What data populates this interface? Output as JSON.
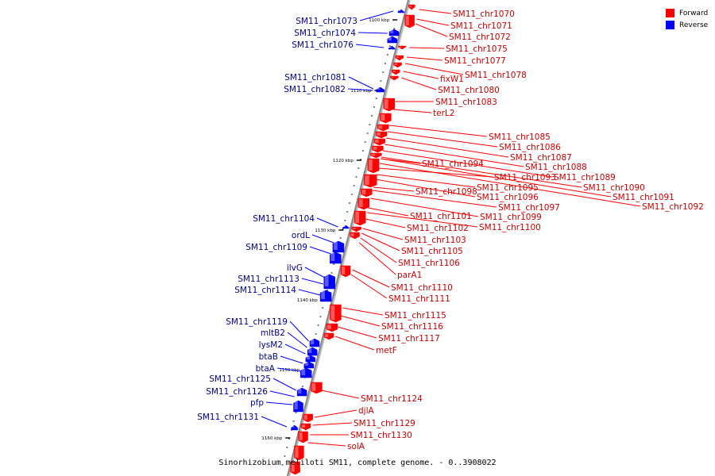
{
  "legend": {
    "forward_label": "Forward",
    "reverse_label": "Reverse",
    "forward_color": "#ff0000",
    "reverse_color": "#0000ff"
  },
  "caption": "Sinorhizobium meliloti SM11, complete genome. - 0..3908022",
  "colors": {
    "forward_fill": "#ff0000",
    "forward_label": "#cc0000",
    "reverse_fill": "#0000ff",
    "reverse_label": "#000099",
    "axis": "#999999",
    "ticks": "#000000"
  },
  "scale_ticks": [
    "1100 kbp",
    "1110 kbp",
    "1120 kbp",
    "1130 kbp",
    "1140 kbp",
    "1150 kbp",
    "1160 kbp"
  ],
  "forward_genes": [
    "SM11_chr1070",
    "SM11_chr1071",
    "SM11_chr1072",
    "SM11_chr1075",
    "SM11_chr1077",
    "SM11_chr1078",
    "fixW1",
    "SM11_chr1080",
    "SM11_chr1083",
    "terL2",
    "SM11_chr1085",
    "SM11_chr1086",
    "SM11_chr1087",
    "SM11_chr1088",
    "SM11_chr1089",
    "SM11_chr1090",
    "SM11_chr1091",
    "SM11_chr1092",
    "SM11_chr1094",
    "SM11_chr1093",
    "SM11_chr1095",
    "SM11_chr1096",
    "SM11_chr1098",
    "SM11_chr1097",
    "SM11_chr1099",
    "SM11_chr1101",
    "SM11_chr1100",
    "SM11_chr1102",
    "SM11_chr1103",
    "SM11_chr1105",
    "SM11_chr1106",
    "parA1",
    "SM11_chr1110",
    "SM11_chr1111",
    "SM11_chr1115",
    "SM11_chr1116",
    "SM11_chr1117",
    "metF",
    "SM11_chr1124",
    "djlA",
    "SM11_chr1129",
    "SM11_chr1130",
    "solA"
  ],
  "reverse_genes": [
    "SM11_chr1073",
    "SM11_chr1074",
    "SM11_chr1076",
    "SM11_chr1081",
    "SM11_chr1082",
    "SM11_chr1104",
    "ordL",
    "SM11_chr1109",
    "ilvG",
    "SM11_chr1113",
    "SM11_chr1114",
    "SM11_chr1119",
    "mltB2",
    "lysM2",
    "btaB",
    "btaA",
    "SM11_chr1125",
    "SM11_chr1126",
    "pfp",
    "SM11_chr1131"
  ]
}
